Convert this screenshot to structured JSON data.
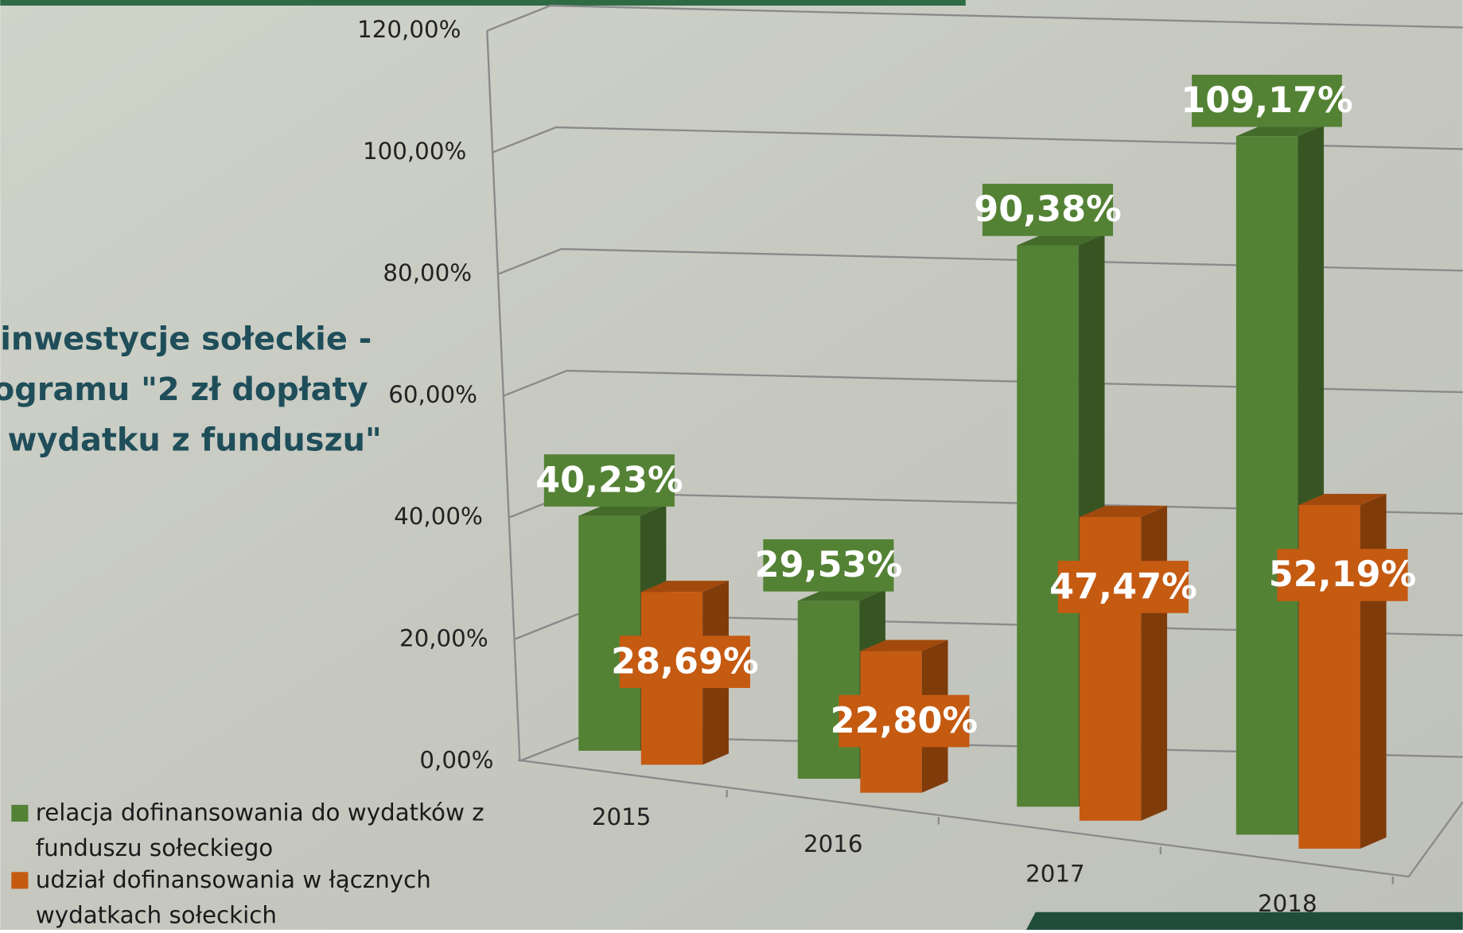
{
  "chart_data": {
    "type": "bar3d",
    "title_lines": [
      "inwestycje sołeckie -",
      "ogramu \"2 zł dopłaty",
      "wydatku z funduszu\""
    ],
    "categories": [
      "2015",
      "2016",
      "2017",
      "2018"
    ],
    "series": [
      {
        "name": "relacja dofinansowania do wydatków z funduszu sołeckiego",
        "color": "#548235",
        "values": [
          40.23,
          29.53,
          90.38,
          109.17
        ],
        "value_labels": [
          "40,23%",
          "29,53%",
          "90,38%",
          "109,17%"
        ]
      },
      {
        "name": "udział dofinansowania w łącznych wydatkach sołeckich",
        "color": "#c55a11",
        "values": [
          28.69,
          22.8,
          47.47,
          52.19
        ],
        "value_labels": [
          "28,69%",
          "22,80%",
          "47,47%",
          "52,19%"
        ]
      }
    ],
    "ylim": [
      0,
      120
    ],
    "yticks": [
      {
        "value": 0,
        "label": "0,00%"
      },
      {
        "value": 20,
        "label": "20,00%"
      },
      {
        "value": 40,
        "label": "40,00%"
      },
      {
        "value": 60,
        "label": "60,00%"
      },
      {
        "value": 80,
        "label": "80,00%"
      },
      {
        "value": 100,
        "label": "100,00%"
      },
      {
        "value": 120,
        "label": "120,00%"
      }
    ],
    "grid": true
  }
}
